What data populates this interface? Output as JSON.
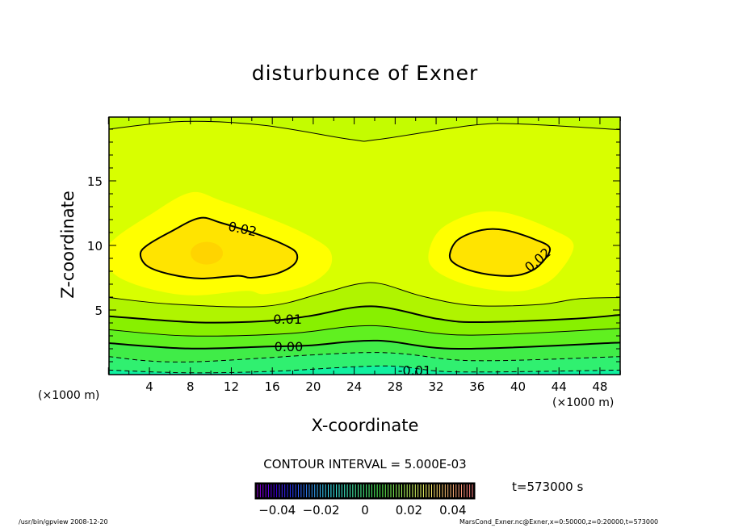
{
  "chart_data": {
    "type": "contour",
    "title": "disturbunce of Exner",
    "xlabel": "X-coordinate",
    "ylabel": "Z-coordinate",
    "x_unit_left": "(×1000 m)",
    "x_unit_right": "(×1000 m)",
    "xlim": [
      0,
      50
    ],
    "ylim": [
      0,
      20
    ],
    "xticks": [
      4,
      8,
      12,
      16,
      20,
      24,
      28,
      32,
      36,
      40,
      44,
      48
    ],
    "yticks": [
      5,
      10,
      15
    ],
    "contour_interval_text": "CONTOUR INTERVAL = 5.000E-03",
    "time_text": "t=573000 s",
    "contours": [
      {
        "level": -0.01,
        "label": "-0.01",
        "label_at": [
          29.9,
          0.35
        ],
        "style": "dashed",
        "fill_above": "#30f070",
        "points": [
          [
            0,
            0.35
          ],
          [
            7.75,
            0.14
          ],
          [
            15.9,
            0.25
          ],
          [
            27,
            0.67
          ],
          [
            34,
            0.21
          ],
          [
            50,
            0.35
          ]
        ]
      },
      {
        "level": -0.005,
        "label": "",
        "style": "dashed",
        "fill_above": "#40ec48",
        "points": [
          [
            0,
            1.39
          ],
          [
            7.75,
            0.98
          ],
          [
            25.7,
            1.71
          ],
          [
            35.5,
            1.08
          ],
          [
            50,
            1.39
          ]
        ]
      },
      {
        "level": 0.0,
        "label": "0.00",
        "label_at": [
          17.6,
          2.2
        ],
        "style": "thick",
        "fill_above": "#60f020",
        "points": [
          [
            0,
            2.44
          ],
          [
            7.75,
            2.02
          ],
          [
            15.6,
            2.17
          ],
          [
            19.5,
            2.25
          ],
          [
            26.3,
            2.63
          ],
          [
            34.2,
            2.0
          ],
          [
            50,
            2.48
          ]
        ]
      },
      {
        "level": 0.005,
        "label": "",
        "style": "thin",
        "fill_above": "#88f000",
        "points": [
          [
            0,
            3.48
          ],
          [
            7.75,
            3.0
          ],
          [
            17.5,
            3.17
          ],
          [
            25.7,
            3.79
          ],
          [
            34.8,
            3.06
          ],
          [
            50,
            3.58
          ]
        ]
      },
      {
        "level": 0.01,
        "label": "0.01",
        "label_at": [
          17.5,
          4.31
        ],
        "style": "thick",
        "fill_above": "#b0f400",
        "points": [
          [
            0,
            4.52
          ],
          [
            8.73,
            4.04
          ],
          [
            15.25,
            4.14
          ],
          [
            19.5,
            4.52
          ],
          [
            25.7,
            5.29
          ],
          [
            32.2,
            4.31
          ],
          [
            36.1,
            4.06
          ],
          [
            45.2,
            4.31
          ],
          [
            50,
            4.63
          ]
        ]
      },
      {
        "level": 0.015,
        "label": "",
        "style": "thin",
        "fill_above": "#d8ff00",
        "points": [
          [
            0,
            5.97
          ],
          [
            6.12,
            5.46
          ],
          [
            15.25,
            5.29
          ],
          [
            20.8,
            6.29
          ],
          [
            24.4,
            7.02
          ],
          [
            26.7,
            7.02
          ],
          [
            30.6,
            6.08
          ],
          [
            35.5,
            5.36
          ],
          [
            42,
            5.42
          ],
          [
            45.9,
            5.87
          ],
          [
            50,
            5.97
          ]
        ]
      },
      {
        "level": 0.015,
        "label": "",
        "style": "thin",
        "fill_above": "#c4fc00",
        "points": [
          [
            0,
            19.0
          ],
          [
            7.4,
            19.6
          ],
          [
            15.2,
            19.3
          ],
          [
            23.7,
            18.2
          ],
          [
            26.3,
            18.2
          ],
          [
            35.5,
            19.3
          ],
          [
            40.3,
            19.4
          ],
          [
            50,
            18.96
          ]
        ]
      },
      {
        "level": 0.02,
        "label": "0.02",
        "label_at": [
          13.1,
          11.3
        ],
        "label_angle": 12,
        "style": "thick",
        "closed": true,
        "fill_inside": "#ffe400",
        "halo": "#ffff00",
        "points": [
          [
            3.12,
            9.31
          ],
          [
            3.84,
            10.04
          ],
          [
            6.12,
            11.08
          ],
          [
            8.89,
            12.12
          ],
          [
            11.0,
            11.75
          ],
          [
            14.92,
            10.77
          ],
          [
            17.2,
            10.04
          ],
          [
            18.35,
            9.42
          ],
          [
            18.18,
            8.58
          ],
          [
            16.55,
            7.85
          ],
          [
            13.94,
            7.5
          ],
          [
            12.64,
            7.65
          ],
          [
            9.05,
            7.44
          ],
          [
            6.12,
            7.75
          ],
          [
            3.84,
            8.38
          ]
        ]
      },
      {
        "level": 0.02,
        "label": "0.02",
        "label_at": [
          41.9,
          8.9
        ],
        "label_angle": -40,
        "style": "thick",
        "closed": true,
        "fill_inside": "#ffe400",
        "halo": "#ffff00",
        "points": [
          [
            33.34,
            9.31
          ],
          [
            34.16,
            10.46
          ],
          [
            36.44,
            11.19
          ],
          [
            38.72,
            11.19
          ],
          [
            41.65,
            10.46
          ],
          [
            43.12,
            9.73
          ],
          [
            41.98,
            8.38
          ],
          [
            40.35,
            7.75
          ],
          [
            38.39,
            7.65
          ],
          [
            35.78,
            7.96
          ],
          [
            33.83,
            8.58
          ]
        ]
      }
    ],
    "maximum_spot": {
      "center": [
        9.6,
        9.4
      ],
      "color": "#ffd400"
    },
    "base_fill": "#10f0a0",
    "colorbar": {
      "range": [
        -0.05,
        0.05
      ],
      "tick_values": [
        -0.04,
        -0.02,
        0,
        0.02,
        0.04
      ],
      "tick_labels": [
        "−0.04",
        "−0.02",
        "0",
        "0.02",
        "0.04"
      ]
    }
  },
  "footer": {
    "left": "/usr/bin/gpview   2008-12-20",
    "right": "MarsCond_Exner.nc@Exner,x=0:50000,z=0:20000,t=573000"
  }
}
